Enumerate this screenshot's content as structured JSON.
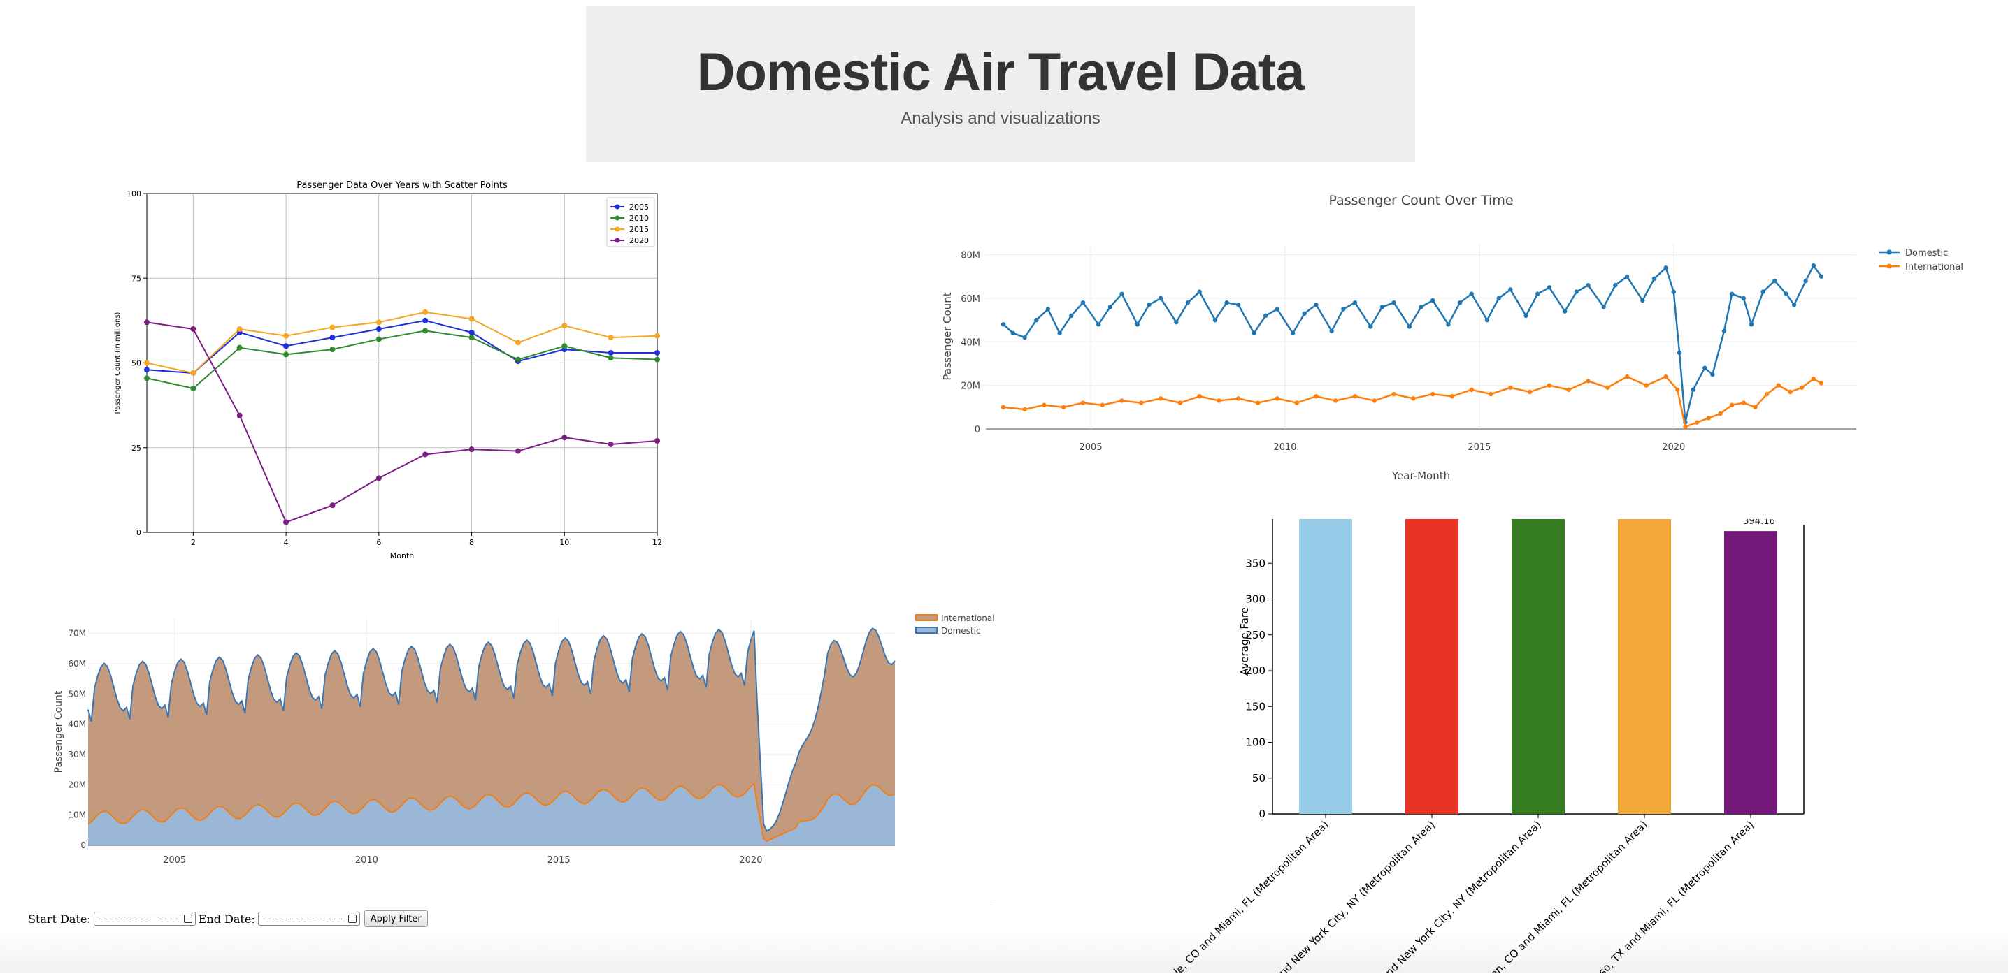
{
  "header": {
    "title": "Domestic Air Travel Data",
    "subtitle": "Analysis and visualizations"
  },
  "filter": {
    "start_label": "Start Date:",
    "end_label": "End Date:",
    "start_value": "---------- ----",
    "end_value": "---------- ----",
    "apply_label": "Apply Filter"
  },
  "chart_data": [
    {
      "type": "line",
      "title": "Passenger Data Over Years with Scatter Points",
      "xlabel": "Month",
      "ylabel": "Passenger Count (in millions)",
      "xlim": [
        1,
        12
      ],
      "ylim": [
        0,
        100
      ],
      "xticks": [
        2,
        4,
        6,
        8,
        10,
        12
      ],
      "yticks": [
        0,
        25,
        50,
        75,
        100
      ],
      "grid": true,
      "legend": "top-right",
      "x": [
        1,
        2,
        3,
        4,
        5,
        6,
        7,
        8,
        9,
        10,
        11,
        12
      ],
      "series": [
        {
          "name": "2005",
          "color": "#1f2fd8",
          "values": [
            48,
            47,
            59,
            55,
            57.5,
            60,
            62.5,
            59,
            50.5,
            54,
            53,
            53
          ]
        },
        {
          "name": "2010",
          "color": "#2e8b2e",
          "values": [
            45.5,
            42.5,
            54.5,
            52.5,
            54,
            57,
            59.5,
            57.5,
            51,
            55,
            51.5,
            51
          ]
        },
        {
          "name": "2015",
          "color": "#f5a623",
          "values": [
            50,
            47,
            60,
            58,
            60.5,
            62,
            65,
            63,
            56,
            61,
            57.5,
            58
          ]
        },
        {
          "name": "2020",
          "color": "#7b1f84",
          "values": [
            62,
            60,
            34.5,
            3,
            8,
            16,
            23,
            24.5,
            24,
            28,
            26,
            27
          ]
        }
      ]
    },
    {
      "type": "line",
      "title": "Passenger Count Over Time",
      "xlabel": "Year-Month",
      "ylabel": "Passenger Count",
      "xlim": [
        2002.3,
        2024.7
      ],
      "ylim": [
        0,
        85
      ],
      "xticks": [
        "2005",
        "2010",
        "2015",
        "2020"
      ],
      "yticks": [
        "0",
        "20M",
        "40M",
        "60M",
        "80M"
      ],
      "legend": "top-right",
      "series": [
        {
          "name": "Domestic",
          "color": "#1f77b4",
          "points": [
            [
              2002.75,
              48
            ],
            [
              2003.0,
              44
            ],
            [
              2003.3,
              42
            ],
            [
              2003.6,
              50
            ],
            [
              2003.9,
              55
            ],
            [
              2004.2,
              44
            ],
            [
              2004.5,
              52
            ],
            [
              2004.8,
              58
            ],
            [
              2005.2,
              48
            ],
            [
              2005.5,
              56
            ],
            [
              2005.8,
              62
            ],
            [
              2006.2,
              48
            ],
            [
              2006.5,
              57
            ],
            [
              2006.8,
              60
            ],
            [
              2007.2,
              49
            ],
            [
              2007.5,
              58
            ],
            [
              2007.8,
              63
            ],
            [
              2008.2,
              50
            ],
            [
              2008.5,
              58
            ],
            [
              2008.8,
              57
            ],
            [
              2009.2,
              44
            ],
            [
              2009.5,
              52
            ],
            [
              2009.8,
              55
            ],
            [
              2010.2,
              44
            ],
            [
              2010.5,
              53
            ],
            [
              2010.8,
              57
            ],
            [
              2011.2,
              45
            ],
            [
              2011.5,
              55
            ],
            [
              2011.8,
              58
            ],
            [
              2012.2,
              47
            ],
            [
              2012.5,
              56
            ],
            [
              2012.8,
              58
            ],
            [
              2013.2,
              47
            ],
            [
              2013.5,
              56
            ],
            [
              2013.8,
              59
            ],
            [
              2014.2,
              48
            ],
            [
              2014.5,
              58
            ],
            [
              2014.8,
              62
            ],
            [
              2015.2,
              50
            ],
            [
              2015.5,
              60
            ],
            [
              2015.8,
              64
            ],
            [
              2016.2,
              52
            ],
            [
              2016.5,
              62
            ],
            [
              2016.8,
              65
            ],
            [
              2017.2,
              54
            ],
            [
              2017.5,
              63
            ],
            [
              2017.8,
              66
            ],
            [
              2018.2,
              56
            ],
            [
              2018.5,
              66
            ],
            [
              2018.8,
              70
            ],
            [
              2019.2,
              59
            ],
            [
              2019.5,
              69
            ],
            [
              2019.8,
              74
            ],
            [
              2020.0,
              63
            ],
            [
              2020.15,
              35
            ],
            [
              2020.3,
              3
            ],
            [
              2020.5,
              18
            ],
            [
              2020.8,
              28
            ],
            [
              2021.0,
              25
            ],
            [
              2021.3,
              45
            ],
            [
              2021.5,
              62
            ],
            [
              2021.8,
              60
            ],
            [
              2022.0,
              48
            ],
            [
              2022.3,
              63
            ],
            [
              2022.6,
              68
            ],
            [
              2022.9,
              62
            ],
            [
              2023.1,
              57
            ],
            [
              2023.4,
              68
            ],
            [
              2023.6,
              75
            ],
            [
              2023.8,
              70
            ]
          ]
        },
        {
          "name": "International",
          "color": "#ff7f0e",
          "points": [
            [
              2002.75,
              10
            ],
            [
              2003.3,
              9
            ],
            [
              2003.8,
              11
            ],
            [
              2004.3,
              10
            ],
            [
              2004.8,
              12
            ],
            [
              2005.3,
              11
            ],
            [
              2005.8,
              13
            ],
            [
              2006.3,
              12
            ],
            [
              2006.8,
              14
            ],
            [
              2007.3,
              12
            ],
            [
              2007.8,
              15
            ],
            [
              2008.3,
              13
            ],
            [
              2008.8,
              14
            ],
            [
              2009.3,
              12
            ],
            [
              2009.8,
              14
            ],
            [
              2010.3,
              12
            ],
            [
              2010.8,
              15
            ],
            [
              2011.3,
              13
            ],
            [
              2011.8,
              15
            ],
            [
              2012.3,
              13
            ],
            [
              2012.8,
              16
            ],
            [
              2013.3,
              14
            ],
            [
              2013.8,
              16
            ],
            [
              2014.3,
              15
            ],
            [
              2014.8,
              18
            ],
            [
              2015.3,
              16
            ],
            [
              2015.8,
              19
            ],
            [
              2016.3,
              17
            ],
            [
              2016.8,
              20
            ],
            [
              2017.3,
              18
            ],
            [
              2017.8,
              22
            ],
            [
              2018.3,
              19
            ],
            [
              2018.8,
              24
            ],
            [
              2019.3,
              20
            ],
            [
              2019.8,
              24
            ],
            [
              2020.1,
              18
            ],
            [
              2020.3,
              1
            ],
            [
              2020.6,
              3
            ],
            [
              2020.9,
              5
            ],
            [
              2021.2,
              7
            ],
            [
              2021.5,
              11
            ],
            [
              2021.8,
              12
            ],
            [
              2022.1,
              10
            ],
            [
              2022.4,
              16
            ],
            [
              2022.7,
              20
            ],
            [
              2023.0,
              17
            ],
            [
              2023.3,
              19
            ],
            [
              2023.6,
              23
            ],
            [
              2023.8,
              21
            ]
          ]
        }
      ]
    },
    {
      "type": "area",
      "title": "",
      "xlabel": "",
      "ylabel": "Passenger Count",
      "xlim": [
        2002.75,
        2023.75
      ],
      "ylim": [
        0,
        75
      ],
      "xticks": [
        "2005",
        "2010",
        "2015",
        "2020"
      ],
      "yticks": [
        "0",
        "10M",
        "20M",
        "30M",
        "40M",
        "50M",
        "60M",
        "70M"
      ],
      "legend": "top-right",
      "stacked": true,
      "series": [
        {
          "name": "International",
          "color": "#f07f17",
          "fill": "#c49a7e"
        },
        {
          "name": "Domestic",
          "color": "#3b76b4",
          "fill": "#9ab7d7"
        }
      ]
    },
    {
      "type": "bar",
      "title": "",
      "xlabel": "",
      "ylabel": "Average Fare",
      "ylim": [
        0,
        400
      ],
      "yticks": [
        0,
        50,
        100,
        150,
        200,
        250,
        300,
        350
      ],
      "categories": [
        "Eagle, CO and Miami, FL (Metropolitan Area)",
        "WY and New York City, NY (Metropolitan Area)",
        "CO and New York City, NY (Metropolitan Area)",
        "Aspen, CO and Miami, FL (Metropolitan Area)",
        "El Paso, TX and Miami, FL (Metropolitan Area)"
      ],
      "values": [
        420,
        420,
        420,
        420,
        395
      ],
      "colors": [
        "#97cce8",
        "#e93425",
        "#367d22",
        "#f2a73b",
        "#74197a"
      ],
      "data_labels": [
        "",
        "",
        "",
        "",
        "394.16"
      ]
    }
  ]
}
